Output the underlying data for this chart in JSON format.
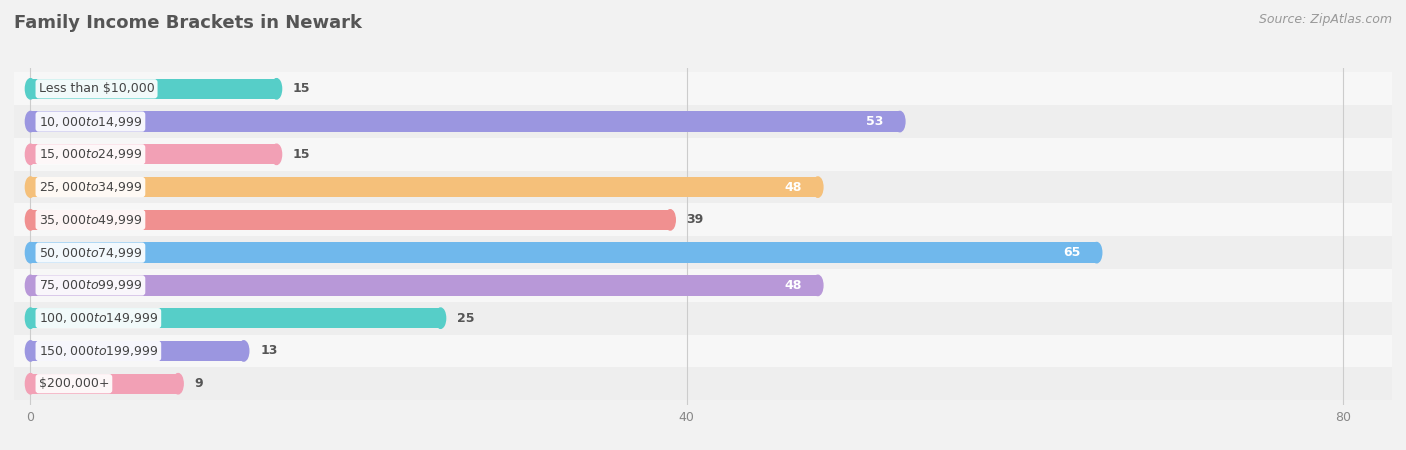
{
  "title": "Family Income Brackets in Newark",
  "source": "Source: ZipAtlas.com",
  "categories": [
    "Less than $10,000",
    "$10,000 to $14,999",
    "$15,000 to $24,999",
    "$25,000 to $34,999",
    "$35,000 to $49,999",
    "$50,000 to $74,999",
    "$75,000 to $99,999",
    "$100,000 to $149,999",
    "$150,000 to $199,999",
    "$200,000+"
  ],
  "values": [
    15,
    53,
    15,
    48,
    39,
    65,
    48,
    25,
    13,
    9
  ],
  "bar_colors": [
    "#56CEC8",
    "#9B96E0",
    "#F2A0B5",
    "#F5C07A",
    "#F09090",
    "#70B8EC",
    "#B898D8",
    "#56CEC8",
    "#9B96E0",
    "#F2A0B5"
  ],
  "row_bg_odd": "#F7F7F7",
  "row_bg_even": "#EEEEEE",
  "fig_bg": "#F2F2F2",
  "xlim_min": -1,
  "xlim_max": 83,
  "xticks": [
    0,
    40,
    80
  ],
  "title_fontsize": 13,
  "label_fontsize": 9,
  "value_fontsize": 9,
  "source_fontsize": 9,
  "bar_height": 0.62
}
